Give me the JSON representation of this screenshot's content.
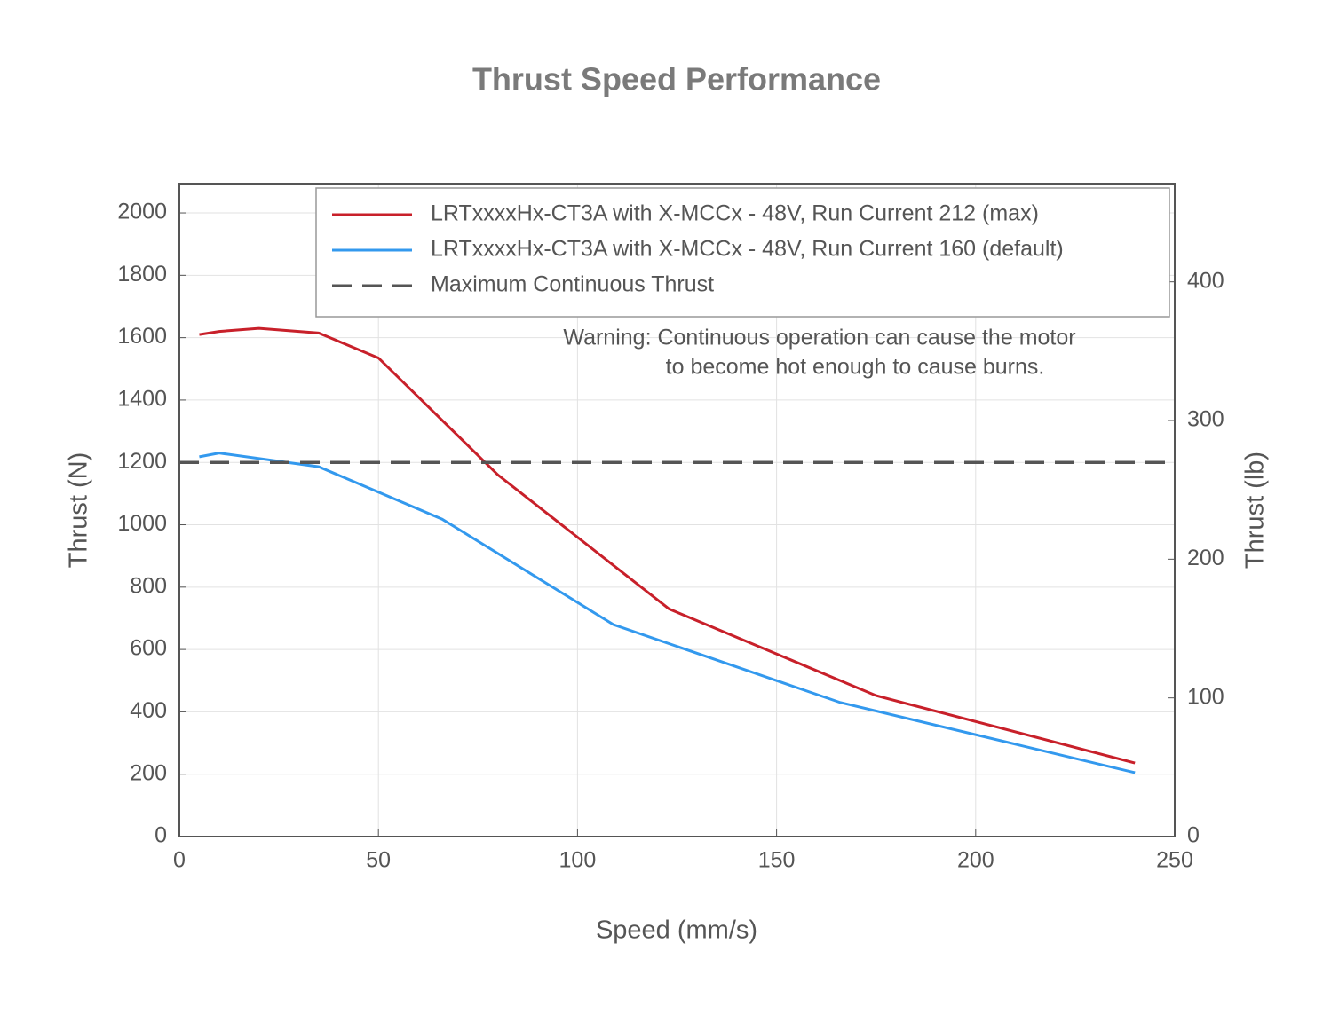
{
  "chart_data": {
    "type": "line",
    "title": "Thrust Speed Performance",
    "x_label": "Speed (mm/s)",
    "y_label": "Thrust (N)",
    "y2_label": "Thrust (lb)",
    "annotation": [
      "Warning: Continuous operation can cause the motor",
      "to become hot enough to cause burns."
    ],
    "xlim": [
      0,
      250
    ],
    "xticks": [
      0,
      50,
      100,
      150,
      200,
      250
    ],
    "ylim": [
      0,
      2094
    ],
    "yticks": [
      0,
      200,
      400,
      600,
      800,
      1000,
      1200,
      1400,
      1600,
      1800,
      2000
    ],
    "y2lim": [
      0,
      470.8
    ],
    "y2ticks": [
      0,
      100,
      200,
      300,
      400
    ],
    "grid": true,
    "legend": "upper right",
    "series": [
      {
        "name": "LRTxxxxHx-CT3A with X-MCCx - 48V, Run Current 212 (max)",
        "color": "#c8202a",
        "x": [
          5,
          10,
          20,
          35,
          50,
          80,
          123,
          175,
          240
        ],
        "values": [
          1610,
          1620,
          1630,
          1615,
          1535,
          1160,
          730,
          452,
          236
        ]
      },
      {
        "name": "LRTxxxxHx-CT3A with X-MCCx - 48V, Run Current 160 (default)",
        "color": "#3399ee",
        "x": [
          5,
          10,
          35,
          66,
          109,
          166,
          240
        ],
        "values": [
          1218,
          1230,
          1186,
          1018,
          680,
          430,
          205
        ]
      },
      {
        "name": "Maximum Continuous Thrust",
        "color": "#555555",
        "dashed": true,
        "x": [
          0,
          250
        ],
        "values": [
          1200,
          1200
        ]
      }
    ]
  }
}
